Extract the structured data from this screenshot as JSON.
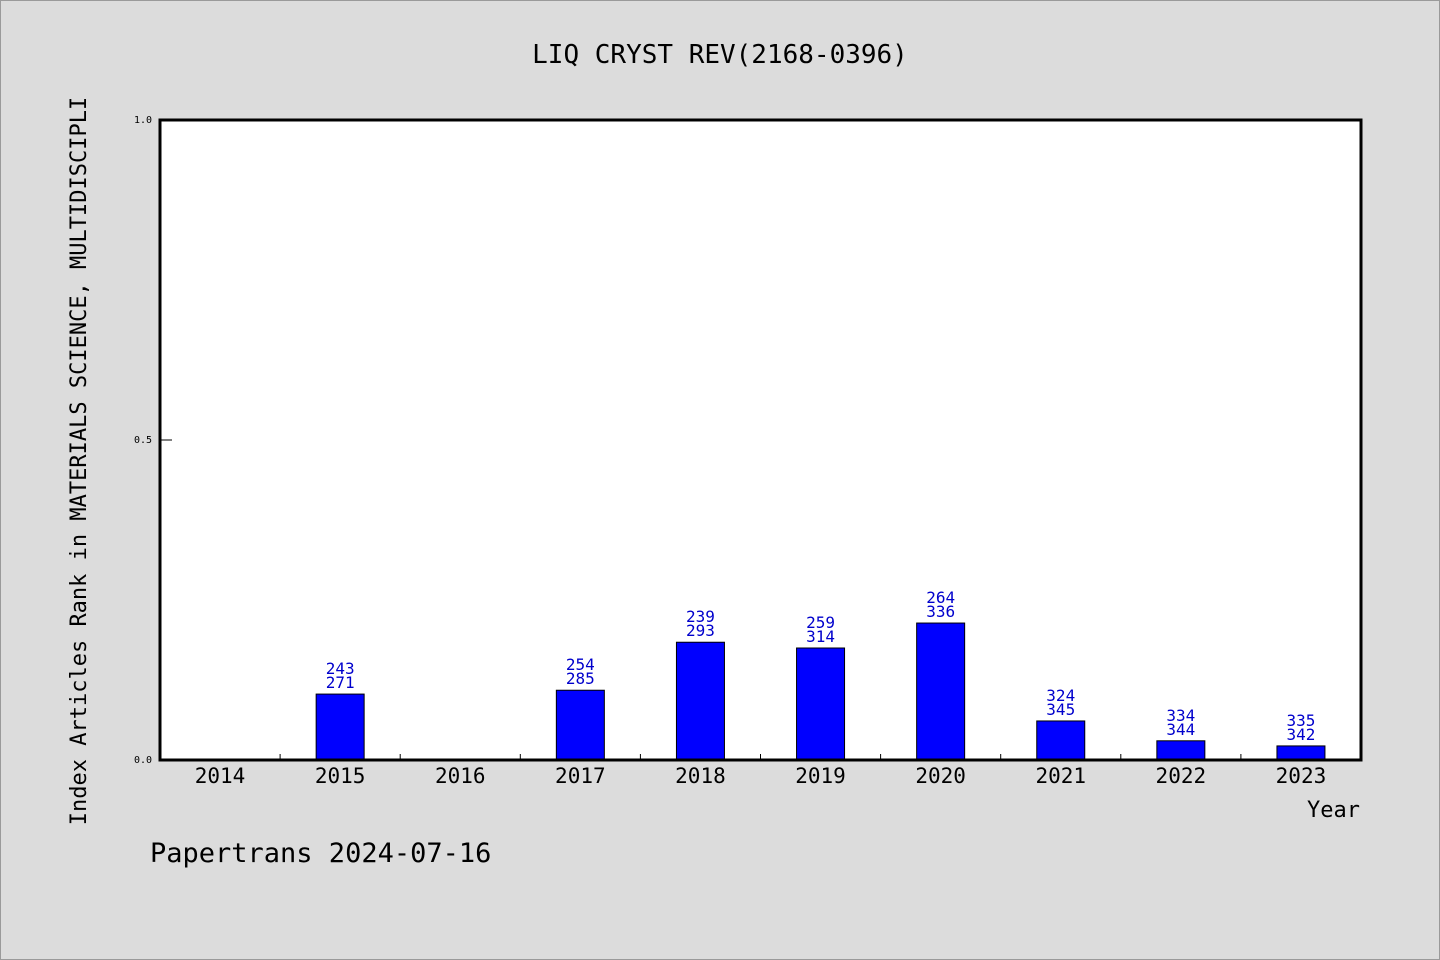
{
  "chart_data": {
    "type": "bar",
    "title": "LIQ CRYST REV(2168-0396)",
    "xlabel": "Year",
    "ylabel": "Index Articles Rank in MATERIALS SCIENCE, MULTIDISCIPLI",
    "ylim": [
      0,
      1
    ],
    "yticks": [
      "0.0",
      "0.5",
      "1.0"
    ],
    "categories": [
      "2014",
      "2015",
      "2016",
      "2017",
      "2018",
      "2019",
      "2020",
      "2021",
      "2022",
      "2023"
    ],
    "values": [
      null,
      0.103,
      null,
      0.109,
      0.184,
      0.175,
      0.214,
      0.061,
      0.03,
      0.022
    ],
    "rank_labels": [
      null,
      "243",
      null,
      "254",
      "239",
      "259",
      "264",
      "324",
      "334",
      "335"
    ],
    "total_labels": [
      null,
      "271",
      null,
      "285",
      "293",
      "314",
      "336",
      "345",
      "344",
      "342"
    ],
    "bar_color": "#0000ff",
    "label_color": "#0000cc",
    "grid": false,
    "legend": "none"
  },
  "footer": {
    "text": "Papertrans 2024-07-16"
  }
}
